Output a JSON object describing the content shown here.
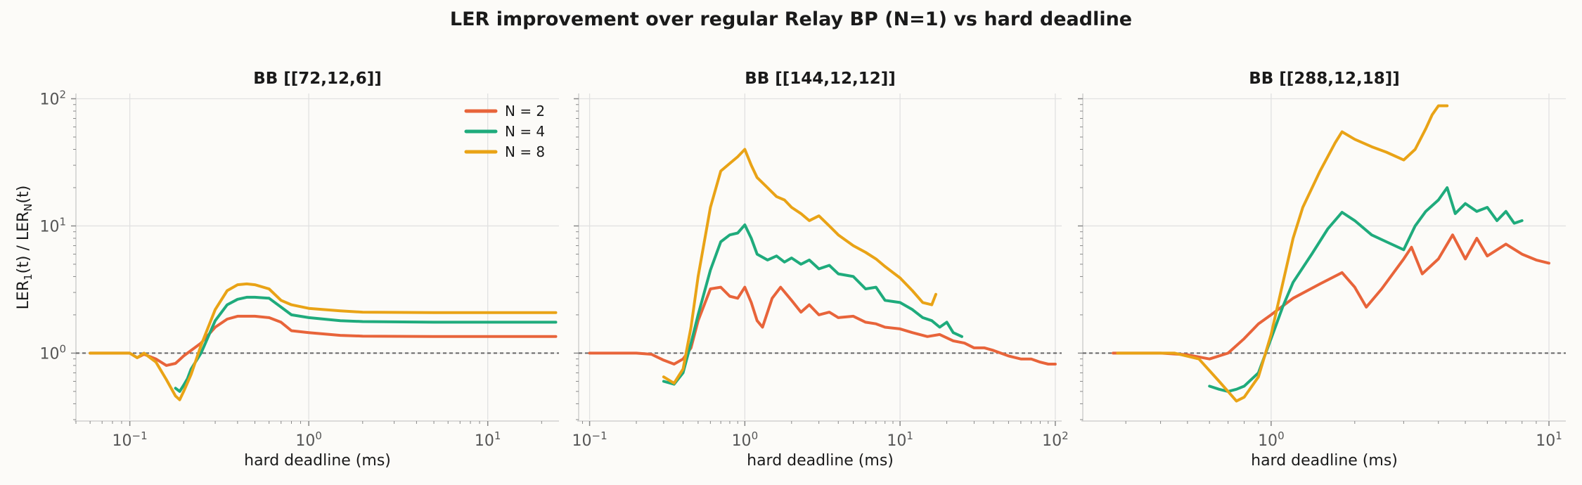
{
  "chart_data": {
    "type": "line",
    "title": "LER improvement over regular Relay BP (N=1) vs hard deadline",
    "ylabel": {
      "pre": "LER",
      "sub1": "1",
      "mid": "(t) / LER",
      "sub2": "N",
      "post": "(t)"
    },
    "yscale": "log",
    "xscale": "log",
    "ylim": [
      0.3,
      110
    ],
    "reference_line": 1,
    "legend": {
      "placement": "top-right",
      "panel": 0
    },
    "colors": {
      "N = 2": "#e8643a",
      "N = 4": "#1fab7c",
      "N = 8": "#e9a316"
    },
    "panels": [
      {
        "title": "BB [[72,12,6]]",
        "xlabel": "hard deadline (ms)",
        "xlim": [
          0.05,
          25
        ],
        "xticks": [
          0.1,
          1,
          10
        ],
        "xtick_exponents": [
          "−1",
          "0",
          "1"
        ],
        "series": [
          {
            "name": "N = 2",
            "x": [
              0.06,
              0.08,
              0.1,
              0.11,
              0.12,
              0.14,
              0.16,
              0.18,
              0.2,
              0.25,
              0.3,
              0.35,
              0.4,
              0.5,
              0.6,
              0.7,
              0.8,
              1,
              1.5,
              2,
              5,
              10,
              24
            ],
            "y": [
              1,
              1,
              1,
              0.92,
              0.98,
              0.9,
              0.8,
              0.83,
              0.95,
              1.2,
              1.6,
              1.85,
              1.95,
              1.95,
              1.9,
              1.75,
              1.5,
              1.45,
              1.38,
              1.36,
              1.35,
              1.35,
              1.35
            ]
          },
          {
            "name": "N = 4",
            "x": [
              0.18,
              0.19,
              0.2,
              0.21,
              0.22,
              0.25,
              0.3,
              0.35,
              0.4,
              0.45,
              0.5,
              0.6,
              0.7,
              0.8,
              1,
              1.5,
              2,
              5,
              10,
              24
            ],
            "y": [
              0.53,
              0.5,
              0.56,
              0.63,
              0.75,
              1,
              1.8,
              2.4,
              2.65,
              2.75,
              2.75,
              2.7,
              2.3,
              2.0,
              1.9,
              1.8,
              1.77,
              1.75,
              1.75,
              1.75
            ]
          },
          {
            "name": "N = 8",
            "x": [
              0.06,
              0.08,
              0.1,
              0.11,
              0.12,
              0.14,
              0.16,
              0.18,
              0.19,
              0.2,
              0.22,
              0.25,
              0.3,
              0.35,
              0.4,
              0.45,
              0.5,
              0.6,
              0.7,
              0.8,
              1,
              1.5,
              2,
              5,
              10,
              24
            ],
            "y": [
              1,
              1,
              1,
              0.92,
              1,
              0.85,
              0.62,
              0.46,
              0.43,
              0.5,
              0.68,
              1.15,
              2.2,
              3.1,
              3.45,
              3.5,
              3.45,
              3.2,
              2.6,
              2.4,
              2.25,
              2.15,
              2.1,
              2.08,
              2.08,
              2.08
            ]
          }
        ]
      },
      {
        "title": "BB [[144,12,12]]",
        "xlabel": "hard deadline (ms)",
        "xlim": [
          0.085,
          110
        ],
        "xticks": [
          0.1,
          1,
          10,
          100
        ],
        "xtick_exponents": [
          "−1",
          "0",
          "1",
          "2"
        ],
        "series": [
          {
            "name": "N = 2",
            "x": [
              0.1,
              0.15,
              0.2,
              0.25,
              0.3,
              0.35,
              0.4,
              0.45,
              0.5,
              0.6,
              0.7,
              0.8,
              0.9,
              1,
              1.1,
              1.2,
              1.3,
              1.5,
              1.7,
              2,
              2.3,
              2.6,
              3,
              3.5,
              4,
              5,
              6,
              7,
              8,
              10,
              12,
              15,
              18,
              22,
              26,
              30,
              35,
              40,
              50,
              60,
              70,
              80,
              90,
              100
            ],
            "y": [
              1,
              1,
              1,
              0.98,
              0.88,
              0.82,
              0.9,
              1.1,
              1.8,
              3.2,
              3.3,
              2.8,
              2.7,
              3.3,
              2.5,
              1.8,
              1.6,
              2.7,
              3.3,
              2.6,
              2.1,
              2.4,
              2.0,
              2.1,
              1.9,
              1.95,
              1.75,
              1.7,
              1.6,
              1.55,
              1.45,
              1.35,
              1.4,
              1.25,
              1.2,
              1.1,
              1.1,
              1.05,
              0.95,
              0.9,
              0.9,
              0.85,
              0.82,
              0.82
            ]
          },
          {
            "name": "N = 4",
            "x": [
              0.3,
              0.35,
              0.4,
              0.45,
              0.5,
              0.6,
              0.7,
              0.8,
              0.9,
              1,
              1.1,
              1.2,
              1.4,
              1.6,
              1.8,
              2,
              2.3,
              2.6,
              3,
              3.5,
              4,
              5,
              6,
              7,
              8,
              10,
              12,
              14,
              16,
              18,
              20,
              22,
              25
            ],
            "y": [
              0.6,
              0.57,
              0.7,
              1.2,
              2.0,
              4.5,
              7.5,
              8.5,
              8.8,
              10.2,
              8.0,
              6.0,
              5.4,
              5.8,
              5.2,
              5.6,
              5.0,
              5.4,
              4.6,
              4.9,
              4.2,
              4.0,
              3.2,
              3.3,
              2.6,
              2.5,
              2.2,
              1.9,
              1.8,
              1.6,
              1.75,
              1.45,
              1.35
            ]
          },
          {
            "name": "N = 8",
            "x": [
              0.3,
              0.35,
              0.4,
              0.45,
              0.5,
              0.6,
              0.7,
              0.8,
              0.9,
              1,
              1.1,
              1.2,
              1.4,
              1.6,
              1.8,
              2,
              2.3,
              2.6,
              3,
              3.5,
              4,
              5,
              6,
              7,
              8,
              10,
              12,
              14,
              16,
              17
            ],
            "y": [
              0.65,
              0.58,
              0.75,
              1.6,
              4.0,
              14,
              27,
              31,
              35,
              40,
              30,
              24,
              20,
              17,
              16,
              14,
              12.5,
              11,
              12,
              10,
              8.5,
              7,
              6.2,
              5.5,
              4.8,
              3.9,
              3.1,
              2.5,
              2.4,
              2.9
            ]
          }
        ]
      },
      {
        "title": "BB [[288,12,18]]",
        "xlabel": "hard deadline (ms)",
        "xlim": [
          0.21,
          11.5
        ],
        "xticks": [
          1,
          10
        ],
        "xtick_exponents": [
          "0",
          "1"
        ],
        "series": [
          {
            "name": "N = 2",
            "x": [
              0.27,
              0.3,
              0.4,
              0.5,
              0.6,
              0.7,
              0.8,
              0.9,
              1,
              1.2,
              1.5,
              1.8,
              2,
              2.2,
              2.5,
              3,
              3.2,
              3.5,
              4,
              4.5,
              5,
              5.5,
              6,
              7,
              8,
              9,
              10
            ],
            "y": [
              1,
              1,
              1,
              0.97,
              0.9,
              1.0,
              1.3,
              1.7,
              2.0,
              2.7,
              3.5,
              4.3,
              3.3,
              2.3,
              3.2,
              5.5,
              6.8,
              4.2,
              5.5,
              8.5,
              5.5,
              8.0,
              5.8,
              7.2,
              6.0,
              5.4,
              5.1
            ]
          },
          {
            "name": "N = 4",
            "x": [
              0.6,
              0.65,
              0.7,
              0.75,
              0.8,
              0.9,
              1,
              1.1,
              1.2,
              1.4,
              1.6,
              1.8,
              2,
              2.3,
              2.6,
              3,
              3.3,
              3.6,
              4,
              4.3,
              4.6,
              5,
              5.5,
              6,
              6.5,
              7,
              7.5,
              8
            ],
            "y": [
              0.55,
              0.52,
              0.5,
              0.52,
              0.55,
              0.7,
              1.3,
              2.3,
              3.6,
              6.0,
              9.5,
              12.8,
              11,
              8.5,
              7.5,
              6.5,
              10,
              13,
              16,
              20,
              12.5,
              15,
              13,
              14,
              11,
              13,
              10.5,
              11
            ]
          },
          {
            "name": "N = 8",
            "x": [
              0.28,
              0.35,
              0.45,
              0.55,
              0.65,
              0.7,
              0.75,
              0.8,
              0.9,
              1,
              1.1,
              1.2,
              1.3,
              1.5,
              1.7,
              1.8,
              2,
              2.3,
              2.6,
              3,
              3.3,
              3.6,
              3.8,
              4,
              4.3
            ],
            "y": [
              1,
              1,
              1,
              0.9,
              0.6,
              0.5,
              0.42,
              0.45,
              0.65,
              1.4,
              3.5,
              8,
              14,
              27,
              45,
              55,
              48,
              42,
              38,
              33,
              40,
              58,
              75,
              88,
              88
            ]
          }
        ]
      }
    ]
  }
}
